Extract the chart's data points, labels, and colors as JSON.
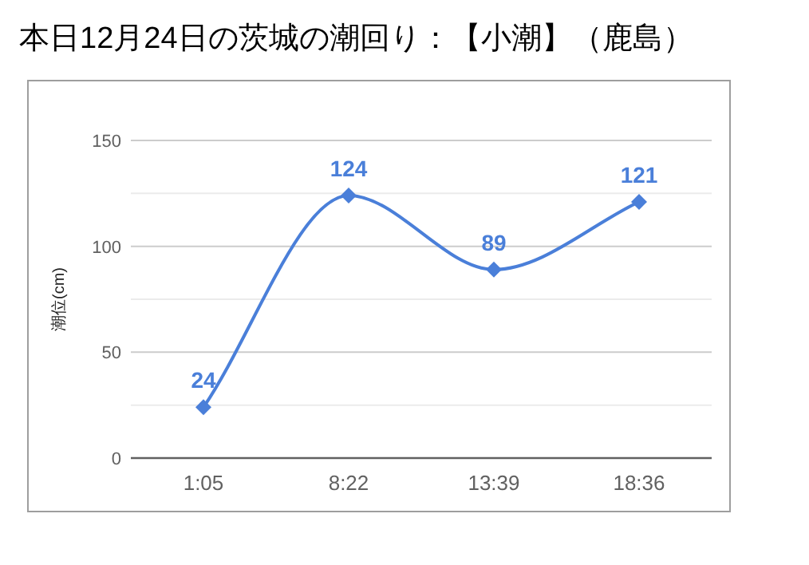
{
  "chart_data": {
    "type": "line",
    "title": "本日12月24日の茨城の潮回り：【小潮】（鹿島）",
    "ylabel": "潮位(cm)",
    "categories": [
      "1:05",
      "8:22",
      "13:39",
      "18:36"
    ],
    "series": [
      {
        "color": "#4a7fd9",
        "values": [
          24,
          124,
          89,
          121
        ]
      }
    ],
    "ylim": [
      0,
      150
    ],
    "yticks": [
      0,
      {
        "value": 25,
        "label": null
      },
      50,
      {
        "value": 75,
        "label": null
      },
      100,
      {
        "value": 125,
        "label": null
      },
      150
    ],
    "grid": "y",
    "marker": "diamond",
    "line_style": "solid",
    "data_labels": true
  }
}
